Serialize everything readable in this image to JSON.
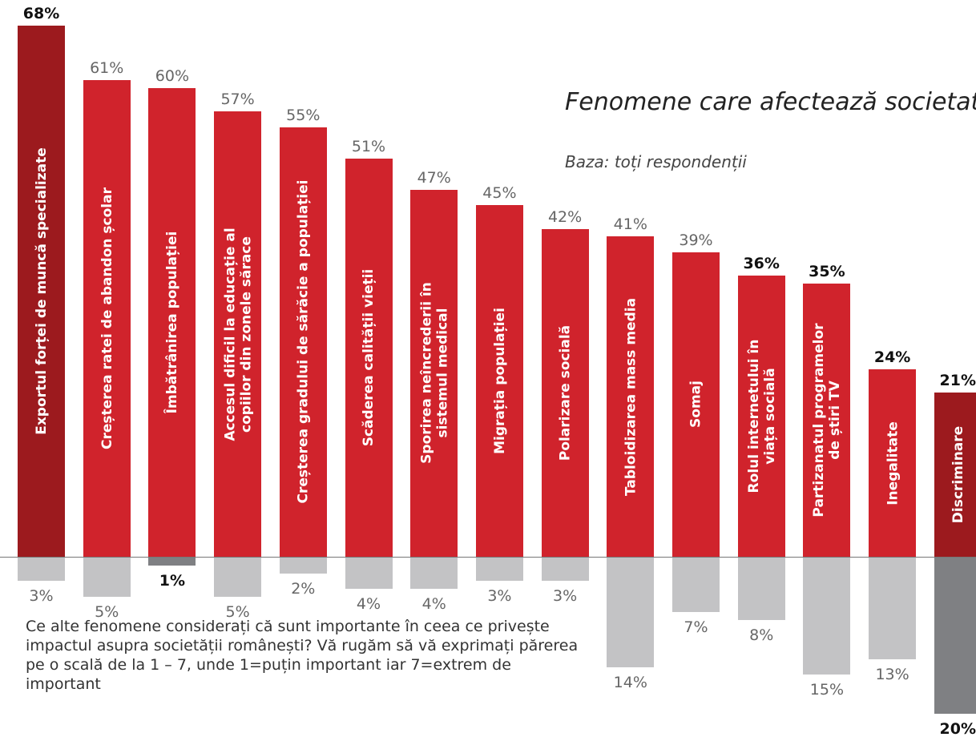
{
  "chart_data": {
    "type": "bar",
    "title": "Fenomene care afectează societatea",
    "subtitle": "Baza: toți respondenții",
    "note": "Ce alte fenomene considerați că sunt importante în ceea ce privește impactul asupra societății românești? Vă rugăm să vă exprimați părerea pe o scală de la 1 – 7, unde 1=puțin important iar 7=extrem de important",
    "categories": [
      "Exportul forței de muncă specializate",
      "Creșterea ratei de abandon școlar",
      "Îmbătrânirea populației",
      "Accesul dificil la educație al\ncopiilor din zonele sărace",
      "Creșterea gradului de sărăcie a populației",
      "Scăderea calității vieții",
      "Sporirea neîncrederii în\nsistemul medical",
      "Migrația populației",
      "Polarizare socială",
      "Tabloidizarea mass media",
      "Somaj",
      "Rolul internetului în\nviața socială",
      "Partizanatul programelor\nde știri TV",
      "Inegalitate",
      "Discriminare"
    ],
    "ylim": [
      -20,
      68
    ],
    "series": [
      {
        "values": [
          68,
          61,
          60,
          57,
          55,
          51,
          47,
          45,
          42,
          41,
          39,
          36,
          35,
          24,
          21
        ],
        "value_labels": [
          "68%",
          "61%",
          "60%",
          "57%",
          "55%",
          "51%",
          "47%",
          "45%",
          "42%",
          "41%",
          "39%",
          "36%",
          "35%",
          "24%",
          "21%"
        ],
        "colors": [
          "#9c1a1e",
          "#d0232c",
          "#d0232c",
          "#d0232c",
          "#d0232c",
          "#d0232c",
          "#d0232c",
          "#d0232c",
          "#d0232c",
          "#d0232c",
          "#d0232c",
          "#d0232c",
          "#d0232c",
          "#d0232c",
          "#9c1a1e"
        ],
        "label_bold": [
          true,
          false,
          false,
          false,
          false,
          false,
          false,
          false,
          false,
          false,
          false,
          true,
          true,
          true,
          true
        ]
      },
      {
        "values": [
          3,
          5,
          1,
          5,
          2,
          4,
          4,
          3,
          3,
          14,
          7,
          8,
          15,
          13,
          20
        ],
        "value_labels": [
          "3%",
          "5%",
          "1%",
          "5%",
          "2%",
          "4%",
          "4%",
          "3%",
          "3%",
          "14%",
          "7%",
          "8%",
          "15%",
          "13%",
          "20%"
        ],
        "colors": [
          "#c3c3c5",
          "#c3c3c5",
          "#7f8083",
          "#c3c3c5",
          "#c3c3c5",
          "#c3c3c5",
          "#c3c3c5",
          "#c3c3c5",
          "#c3c3c5",
          "#c3c3c5",
          "#c3c3c5",
          "#c3c3c5",
          "#c3c3c5",
          "#c3c3c5",
          "#7f8083"
        ],
        "label_bold": [
          false,
          false,
          true,
          false,
          false,
          false,
          false,
          false,
          false,
          false,
          false,
          false,
          false,
          false,
          true
        ]
      }
    ]
  }
}
